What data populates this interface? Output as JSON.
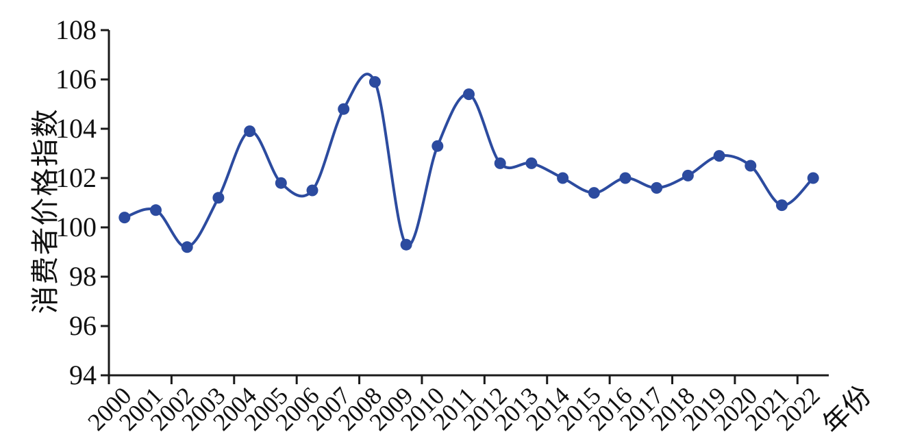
{
  "chart_data": {
    "type": "line",
    "title": "",
    "xlabel": "年份",
    "ylabel": "消费者价格指数",
    "categories": [
      "2000",
      "2001",
      "2002",
      "2003",
      "2004",
      "2005",
      "2006",
      "2007",
      "2008",
      "2009",
      "2010",
      "2011",
      "2012",
      "2013",
      "2014",
      "2015",
      "2016",
      "2017",
      "2018",
      "2019",
      "2020",
      "2021",
      "2022"
    ],
    "series": [
      {
        "name": "消费者价格指数",
        "values": [
          100.4,
          100.7,
          99.2,
          101.2,
          103.9,
          101.8,
          101.5,
          104.8,
          105.9,
          99.3,
          103.3,
          105.4,
          102.6,
          102.6,
          102.0,
          101.4,
          102.0,
          101.6,
          102.1,
          102.9,
          102.5,
          100.9,
          102.0
        ]
      }
    ],
    "ylim": [
      94,
      108
    ],
    "yticks": [
      94,
      96,
      98,
      100,
      102,
      104,
      106,
      108
    ],
    "x_tick_interval": 2,
    "grid": false,
    "legend": "none",
    "smooth": true,
    "marker": "circle",
    "line_color": "#2c4b9f",
    "axis_color": "#1a1a1a",
    "text_color": "#111111"
  }
}
